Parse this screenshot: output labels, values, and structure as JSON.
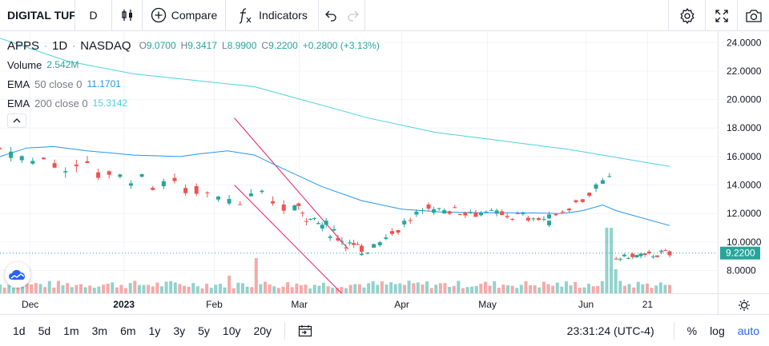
{
  "toolbar": {
    "symbol": "DIGITAL TUF",
    "interval": "D",
    "compare_label": "Compare",
    "indicators_label": "Indicators"
  },
  "legend": {
    "ticker": "APPS",
    "dot1": "·",
    "timeframe": "1D",
    "dot2": "·",
    "exchange": "NASDAQ",
    "open_k": "O",
    "open_v": "9.0700",
    "high_k": "H",
    "high_v": "9.3417",
    "low_k": "L",
    "low_v": "8.9900",
    "close_k": "C",
    "close_v": "9.2200",
    "change": "+0.2800 (+3.13%)",
    "volume_label": "Volume",
    "volume_value": "2.542M",
    "ema50_label": "EMA",
    "ema50_params": "50 close 0",
    "ema50_value": "11.1701",
    "ema200_label": "EMA",
    "ema200_params": "200 close 0",
    "ema200_value": "15.3142"
  },
  "price_axis": {
    "ticks": [
      "24.0000",
      "22.0000",
      "20.0000",
      "18.0000",
      "16.0000",
      "14.0000",
      "12.0000",
      "10.0000",
      "8.0000"
    ],
    "last_price": "9.2200"
  },
  "time_axis": {
    "ticks": [
      {
        "label": "Dec",
        "bold": false
      },
      {
        "label": "2023",
        "bold": true
      },
      {
        "label": "Feb",
        "bold": false
      },
      {
        "label": "Mar",
        "bold": false
      },
      {
        "label": "Apr",
        "bold": false
      },
      {
        "label": "May",
        "bold": false
      },
      {
        "label": "Jun",
        "bold": false
      },
      {
        "label": "21",
        "bold": false
      }
    ]
  },
  "bottom_bar": {
    "ranges": [
      "1d",
      "5d",
      "1m",
      "3m",
      "6m",
      "1y",
      "3y",
      "5y",
      "10y",
      "20y"
    ],
    "time": "23:31:24 (UTC-4)",
    "percent": "%",
    "log": "log",
    "auto": "auto"
  },
  "colors": {
    "up": "#26a69a",
    "down": "#ef5350",
    "ema50": "#2196f3",
    "ema200": "#4dd0e1",
    "trend": "#e91e63",
    "accent": "#2962ff"
  },
  "chart_data": {
    "type": "candlestick",
    "price_range": [
      6.4,
      24.8
    ],
    "volume_bars": 150,
    "ema50_path": [
      [
        0,
        16.0
      ],
      [
        0.04,
        16.6
      ],
      [
        0.08,
        16.7
      ],
      [
        0.13,
        16.4
      ],
      [
        0.2,
        16.1
      ],
      [
        0.27,
        16.0
      ],
      [
        0.3,
        16.2
      ],
      [
        0.34,
        16.4
      ],
      [
        0.38,
        16.1
      ],
      [
        0.42,
        15.2
      ],
      [
        0.48,
        13.9
      ],
      [
        0.54,
        12.9
      ],
      [
        0.6,
        12.3
      ],
      [
        0.66,
        12.1
      ],
      [
        0.72,
        12.05
      ],
      [
        0.78,
        12.05
      ],
      [
        0.84,
        12.0
      ],
      [
        0.87,
        12.2
      ],
      [
        0.9,
        12.6
      ],
      [
        0.92,
        12.2
      ],
      [
        1.0,
        11.15
      ]
    ],
    "ema200_path": [
      [
        0,
        24.3
      ],
      [
        0.1,
        22.7
      ],
      [
        0.2,
        21.8
      ],
      [
        0.3,
        21.3
      ],
      [
        0.38,
        20.9
      ],
      [
        0.45,
        20.0
      ],
      [
        0.55,
        18.7
      ],
      [
        0.65,
        17.7
      ],
      [
        0.75,
        17.1
      ],
      [
        0.85,
        16.5
      ],
      [
        0.9,
        16.1
      ],
      [
        0.95,
        15.7
      ],
      [
        1.0,
        15.3
      ]
    ],
    "last_close": 9.22,
    "segments": [
      {
        "from": [
          0.0,
          16.3
        ],
        "to": [
          0.44,
          12.4
        ],
        "count": 28,
        "noise": 0.5,
        "trend_dir": -1
      },
      {
        "from": [
          0.44,
          12.5
        ],
        "to": [
          0.54,
          9.3
        ],
        "count": 18,
        "noise": 0.35
      },
      {
        "from": [
          0.54,
          9.3
        ],
        "to": [
          0.64,
          12.4
        ],
        "count": 12,
        "noise": 0.3
      },
      {
        "from": [
          0.64,
          12.4
        ],
        "to": [
          0.82,
          11.6
        ],
        "count": 24,
        "noise": 0.25
      },
      {
        "from": [
          0.82,
          11.6
        ],
        "to": [
          0.91,
          14.3
        ],
        "count": 10,
        "noise": 0.3
      },
      {
        "from": [
          0.92,
          8.9
        ],
        "to": [
          1.0,
          9.2
        ],
        "count": 14,
        "noise": 0.2
      }
    ],
    "trend_lines": [
      [
        [
          0.35,
          18.7
        ],
        [
          0.52,
          9.5
        ]
      ],
      [
        [
          0.35,
          14.0
        ],
        [
          0.51,
          6.4
        ]
      ]
    ]
  }
}
